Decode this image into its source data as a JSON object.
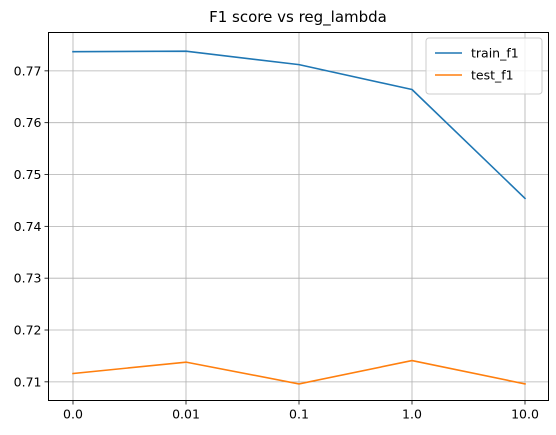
{
  "chart_data": {
    "type": "line",
    "title": "F1 score vs reg_lambda",
    "xlabel": "",
    "ylabel": "",
    "categories": [
      "0.0",
      "0.01",
      "0.1",
      "1.0",
      "10.0"
    ],
    "series": [
      {
        "name": "train_f1",
        "color": "#1f77b4",
        "values": [
          0.7737,
          0.7738,
          0.7712,
          0.7664,
          0.7454
        ]
      },
      {
        "name": "test_f1",
        "color": "#ff7f0e",
        "values": [
          0.7116,
          0.7138,
          0.7096,
          0.7141,
          0.7096
        ]
      }
    ],
    "ylim": [
      0.7064,
      0.7774
    ],
    "yticks": [
      "0.71",
      "0.72",
      "0.73",
      "0.74",
      "0.75",
      "0.76",
      "0.77"
    ],
    "grid": true,
    "legend_position": "top-right"
  }
}
